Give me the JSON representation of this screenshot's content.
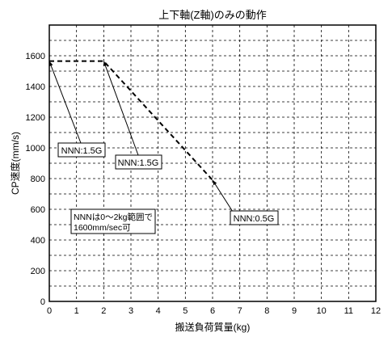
{
  "chart_data": {
    "type": "line",
    "title": "上下軸(Z軸)のみの動作",
    "xlabel": "搬送負荷質量(kg)",
    "ylabel": "CP速度(mm/s)",
    "xlim": [
      0,
      12
    ],
    "ylim": [
      0,
      1800
    ],
    "xticks": [
      0,
      1,
      2,
      3,
      4,
      5,
      6,
      7,
      8,
      9,
      10,
      11,
      12
    ],
    "yticks": [
      0,
      200,
      400,
      600,
      800,
      1000,
      1200,
      1400,
      1600
    ],
    "grid": true,
    "series": [
      {
        "x": [
          0,
          2,
          6
        ],
        "y": [
          1565,
          1565,
          790
        ],
        "style": "dashed",
        "color": "#000000"
      }
    ],
    "annotations": [
      {
        "id": "a1",
        "text": "NNN:1.5G",
        "point": [
          0,
          1565
        ]
      },
      {
        "id": "a2",
        "text": "NNN:1.5G",
        "point": [
          2,
          1565
        ]
      },
      {
        "id": "a3",
        "text": "NNN:0.5G",
        "point": [
          6,
          790
        ]
      }
    ],
    "note_lines": [
      "NNNは0～2kg範囲で",
      "1600mm/sec可"
    ]
  }
}
